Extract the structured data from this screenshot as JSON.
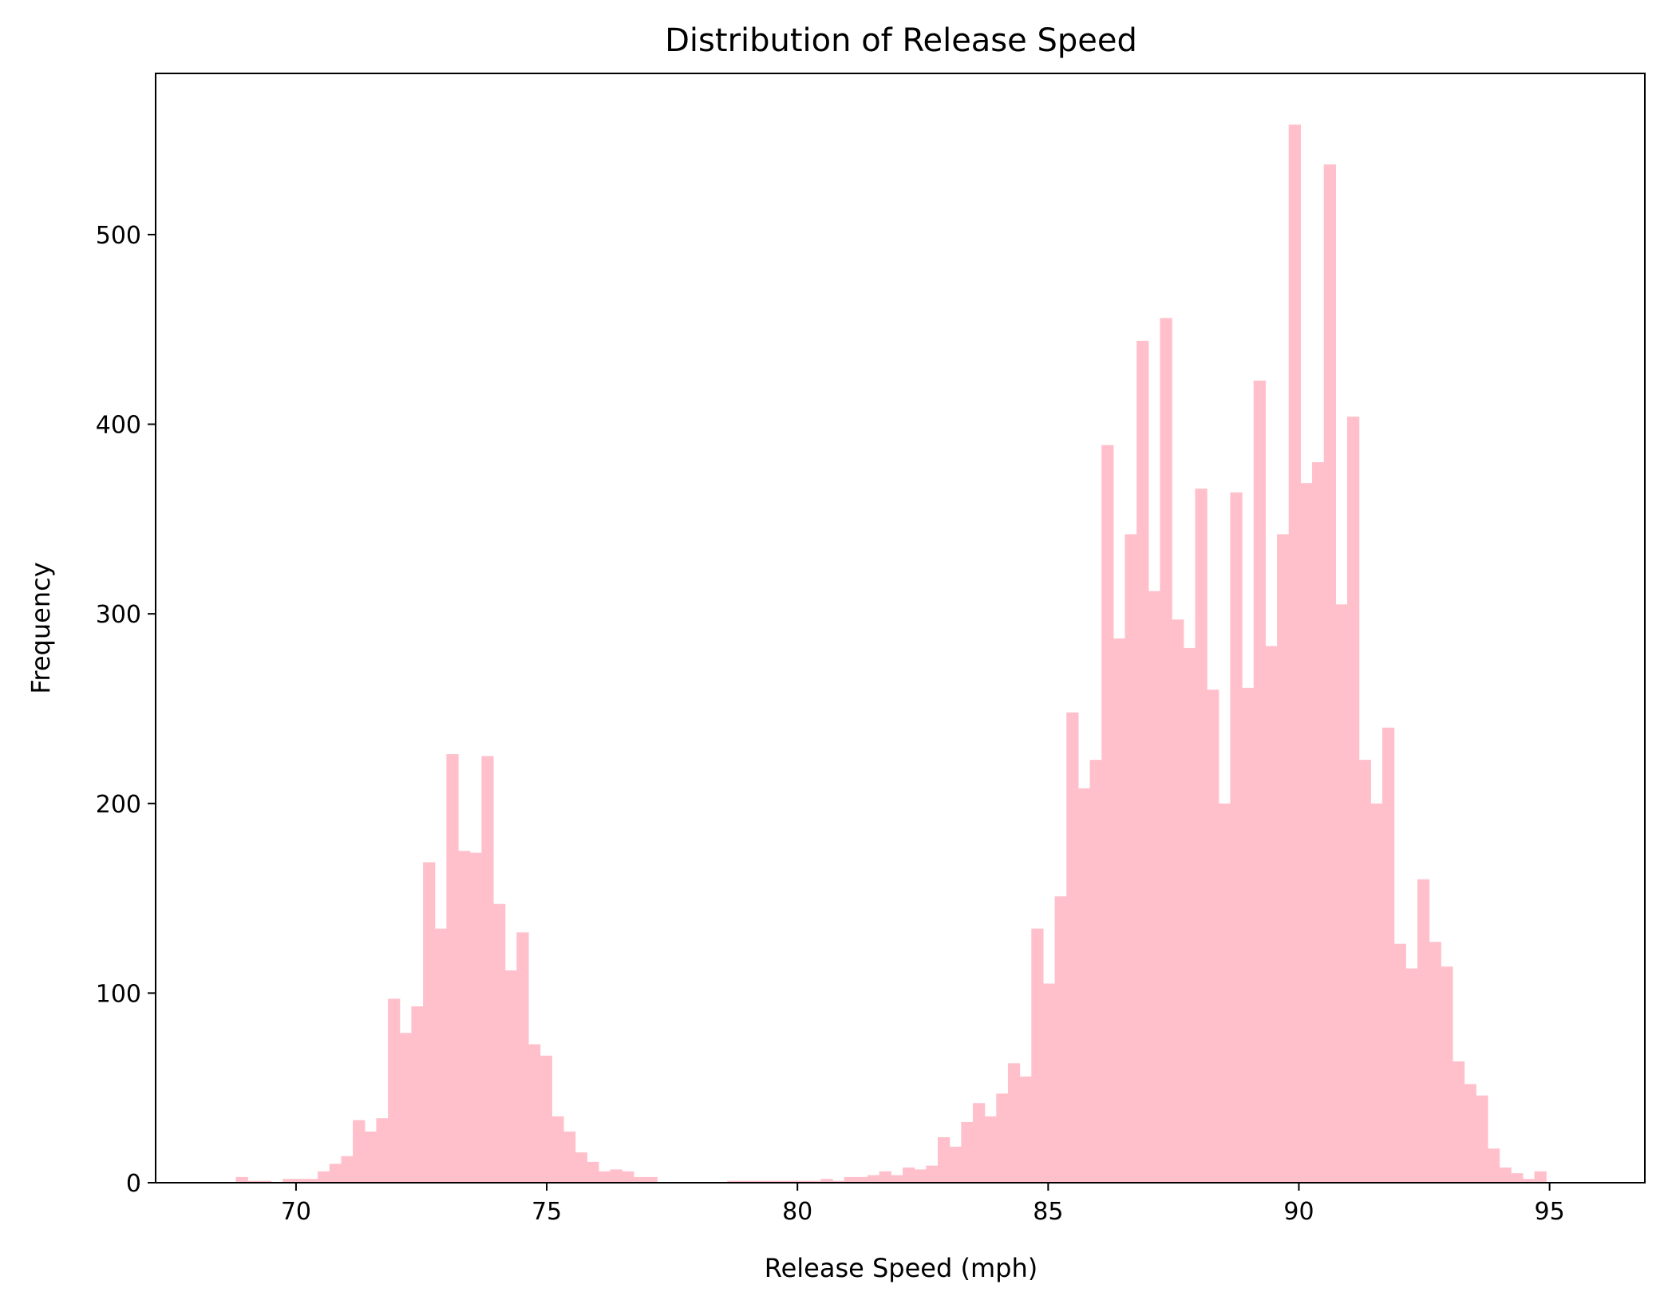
{
  "chart_data": {
    "type": "bar",
    "title": "Distribution of Release Speed",
    "xlabel": "Release Speed (mph)",
    "ylabel": "Frequency",
    "xlim": [
      67.2,
      96.9
    ],
    "ylim": [
      0,
      585
    ],
    "xticks": [
      70,
      75,
      80,
      85,
      90,
      95
    ],
    "yticks": [
      0,
      100,
      200,
      300,
      400,
      500
    ],
    "grid": false,
    "legend": "none",
    "bar_color": "#ffc0cb",
    "bin_start": 68.8,
    "bin_width": 0.2333,
    "values": [
      3,
      1,
      1,
      0,
      2,
      2,
      2,
      6,
      10,
      14,
      33,
      27,
      34,
      97,
      79,
      93,
      169,
      134,
      226,
      175,
      174,
      225,
      147,
      112,
      132,
      73,
      67,
      35,
      27,
      16,
      11,
      6,
      7,
      6,
      3,
      3,
      0,
      0,
      0,
      0,
      0,
      0,
      1,
      1,
      1,
      1,
      1,
      1,
      1,
      1,
      2,
      1,
      3,
      3,
      4,
      6,
      4,
      8,
      7,
      9,
      24,
      19,
      32,
      42,
      35,
      47,
      63,
      56,
      134,
      105,
      151,
      248,
      208,
      223,
      389,
      287,
      342,
      444,
      312,
      456,
      297,
      282,
      366,
      260,
      200,
      364,
      261,
      423,
      283,
      342,
      558,
      369,
      380,
      537,
      305,
      404,
      223,
      200,
      240,
      126,
      113,
      160,
      127,
      114,
      64,
      52,
      46,
      18,
      8,
      5,
      2,
      6
    ]
  }
}
